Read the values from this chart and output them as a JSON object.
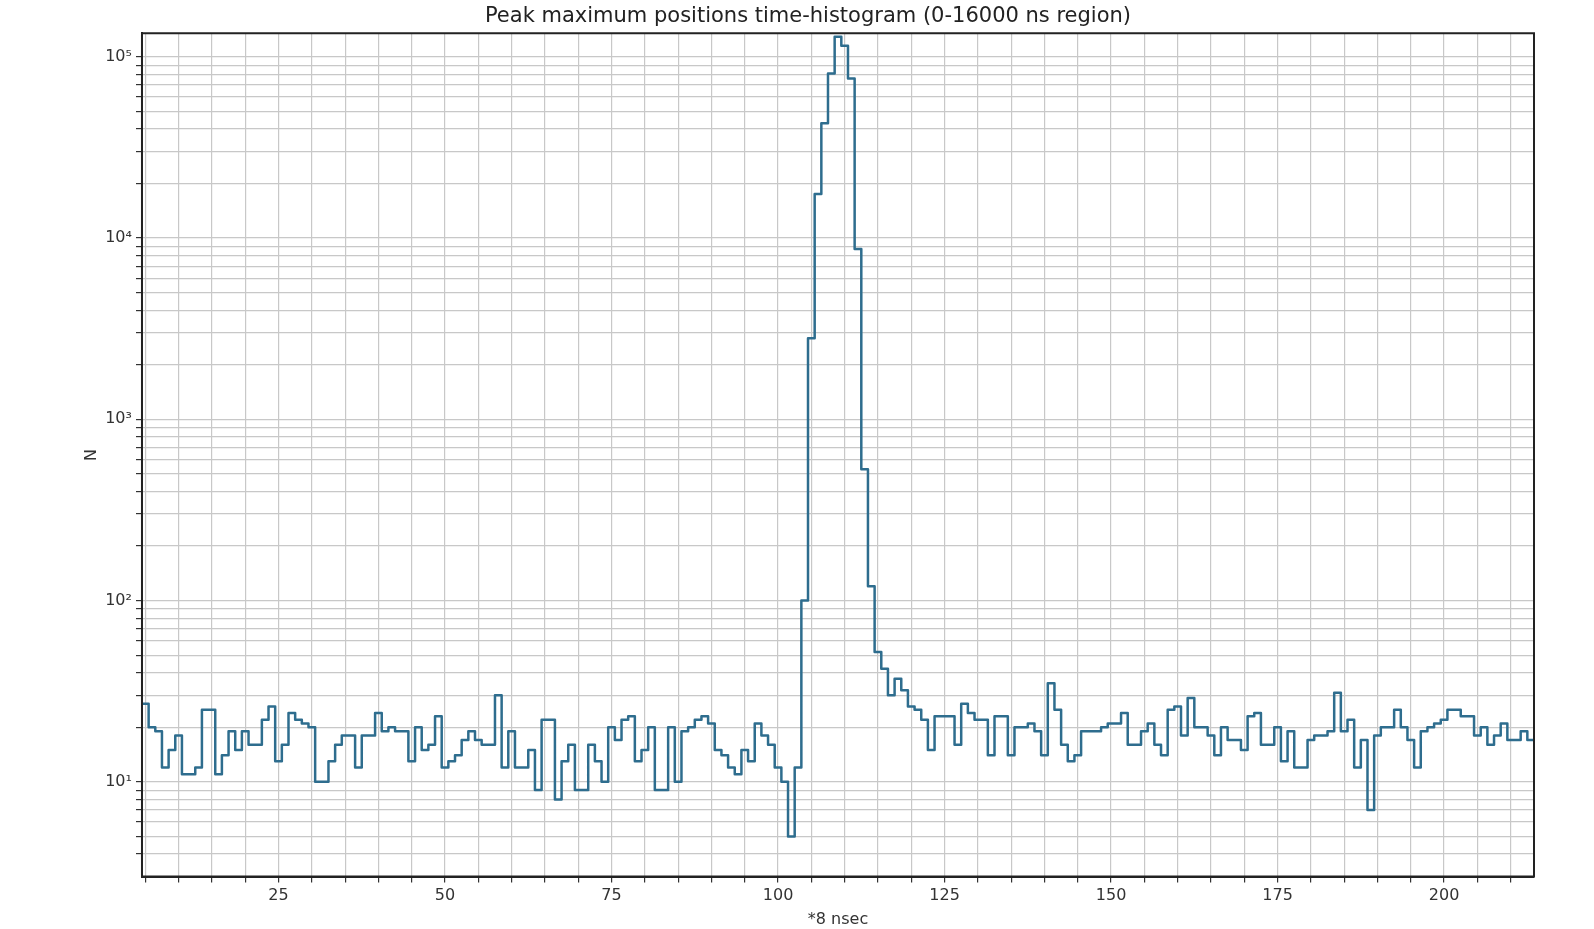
{
  "chart_data": {
    "type": "histogram",
    "title": "Peak maximum positions time-histogram (0-16000 ns region)",
    "xlabel": "*8 nsec",
    "ylabel": "N",
    "color": "#2e6d8e",
    "log": "y",
    "grid": true,
    "legend": false,
    "bins": [
      4.5,
      5.5,
      6.5,
      7.5,
      8.5,
      9.5,
      10.5,
      11.5,
      12.5,
      13.5,
      14.5,
      15.5,
      16.5,
      17.5,
      18.5,
      19.5,
      20.5,
      21.5,
      22.5,
      23.5,
      24.5,
      25.5,
      26.5,
      27.5,
      28.5,
      29.5,
      30.5,
      31.5,
      32.5,
      33.5,
      34.5,
      35.5,
      36.5,
      37.5,
      38.5,
      39.5,
      40.5,
      41.5,
      42.5,
      43.5,
      44.5,
      45.5,
      46.5,
      47.5,
      48.5,
      49.5,
      50.5,
      51.5,
      52.5,
      53.5,
      54.5,
      55.5,
      56.5,
      57.5,
      58.5,
      59.5,
      60.5,
      61.5,
      62.5,
      63.5,
      64.5,
      65.5,
      66.5,
      67.5,
      68.5,
      69.5,
      70.5,
      71.5,
      72.5,
      73.5,
      74.5,
      75.5,
      76.5,
      77.5,
      78.5,
      79.5,
      80.5,
      81.5,
      82.5,
      83.5,
      84.5,
      85.5,
      86.5,
      87.5,
      88.5,
      89.5,
      90.5,
      91.5,
      92.5,
      93.5,
      94.5,
      95.5,
      96.5,
      97.5,
      98.5,
      99.5,
      100.5,
      101.5,
      102.5,
      103.5,
      104.5,
      105.5,
      106.5,
      107.5,
      108.5,
      109.5,
      110.5,
      111.5,
      112.5,
      113.5,
      114.5,
      115.5,
      116.5,
      117.5,
      118.5,
      119.5,
      120.5,
      121.5,
      122.5,
      123.5,
      124.5,
      125.5,
      126.5,
      127.5,
      128.5,
      129.5,
      130.5,
      131.5,
      132.5,
      133.5,
      134.5,
      135.5,
      136.5,
      137.5,
      138.5,
      139.5,
      140.5,
      141.5,
      142.5,
      143.5,
      144.5,
      145.5,
      146.5,
      147.5,
      148.5,
      149.5,
      150.5,
      151.5,
      152.5,
      153.5,
      154.5,
      155.5,
      156.5,
      157.5,
      158.5,
      159.5,
      160.5,
      161.5,
      162.5,
      163.5,
      164.5,
      165.5,
      166.5,
      167.5,
      168.5,
      169.5,
      170.5,
      171.5,
      172.5,
      173.5,
      174.5,
      175.5,
      176.5,
      177.5,
      178.5,
      179.5,
      180.5,
      181.5,
      182.5,
      183.5,
      184.5,
      185.5,
      186.5,
      187.5,
      188.5,
      189.5,
      190.5,
      191.5,
      192.5,
      193.5,
      194.5,
      195.5,
      196.5,
      197.5,
      198.5,
      199.5,
      200.5,
      201.5,
      202.5,
      203.5,
      204.5,
      205.5,
      206.5,
      207.5,
      208.5,
      209.5,
      210.5,
      211.5,
      212.5,
      213.5
    ],
    "values": [
      27,
      20,
      19,
      12,
      15,
      18,
      11,
      11,
      12,
      25,
      25,
      11,
      14,
      19,
      15,
      19,
      16,
      16,
      22,
      26,
      13,
      16,
      24,
      22,
      21,
      20,
      10,
      10,
      13,
      16,
      18,
      18,
      12,
      18,
      18,
      24,
      19,
      20,
      19,
      19,
      13,
      20,
      15,
      16,
      23,
      12,
      13,
      14,
      17,
      19,
      17,
      16,
      16,
      30,
      12,
      19,
      12,
      12,
      15,
      9,
      22,
      22,
      8,
      13,
      16,
      9,
      9,
      16,
      13,
      10,
      20,
      17,
      22,
      23,
      13,
      15,
      20,
      9,
      9,
      20,
      10,
      19,
      20,
      22,
      23,
      21,
      15,
      14,
      12,
      11,
      15,
      13,
      21,
      18,
      16,
      12,
      10,
      5,
      12,
      100,
      2800,
      17500,
      43000,
      81000,
      129000,
      115000,
      76000,
      8700,
      530,
      120,
      52,
      42,
      30,
      37,
      32,
      26,
      25,
      22,
      15,
      23,
      23,
      23,
      16,
      27,
      24,
      22,
      22,
      14,
      23,
      23,
      14,
      20,
      20,
      21,
      19,
      14,
      35,
      25,
      16,
      13,
      14,
      19,
      19,
      19,
      20,
      21,
      21,
      24,
      16,
      16,
      19,
      21,
      16,
      14,
      25,
      26,
      18,
      29,
      20,
      20,
      18,
      14,
      20,
      17,
      17,
      15,
      23,
      24,
      16,
      16,
      20,
      13,
      19,
      12,
      12,
      17,
      18,
      18,
      19,
      31,
      19,
      22,
      12,
      17,
      7,
      18,
      20,
      20,
      25,
      20,
      17,
      12,
      19,
      20,
      21,
      22,
      25,
      25,
      23,
      23,
      18,
      20,
      16,
      18,
      21,
      17,
      17,
      19,
      17
    ],
    "xlim": [
      4.5,
      213.5
    ],
    "xticks": [
      {
        "value": 5,
        "label": null
      },
      {
        "value": 10,
        "label": null
      },
      {
        "value": 15,
        "label": null
      },
      {
        "value": 20,
        "label": null
      },
      25,
      {
        "value": 30,
        "label": null
      },
      {
        "value": 35,
        "label": null
      },
      {
        "value": 40,
        "label": null
      },
      {
        "value": 45,
        "label": null
      },
      50,
      {
        "value": 55,
        "label": null
      },
      {
        "value": 60,
        "label": null
      },
      {
        "value": 65,
        "label": null
      },
      {
        "value": 70,
        "label": null
      },
      75,
      {
        "value": 80,
        "label": null
      },
      {
        "value": 85,
        "label": null
      },
      {
        "value": 90,
        "label": null
      },
      {
        "value": 95,
        "label": null
      },
      100,
      {
        "value": 105,
        "label": null
      },
      {
        "value": 110,
        "label": null
      },
      {
        "value": 115,
        "label": null
      },
      {
        "value": 120,
        "label": null
      },
      125,
      {
        "value": 130,
        "label": null
      },
      {
        "value": 135,
        "label": null
      },
      {
        "value": 140,
        "label": null
      },
      {
        "value": 145,
        "label": null
      },
      150,
      {
        "value": 155,
        "label": null
      },
      {
        "value": 160,
        "label": null
      },
      {
        "value": 165,
        "label": null
      },
      {
        "value": 170,
        "label": null
      },
      175,
      {
        "value": 180,
        "label": null
      },
      {
        "value": 185,
        "label": null
      },
      {
        "value": 190,
        "label": null
      },
      {
        "value": 195,
        "label": null
      },
      200,
      {
        "value": 205,
        "label": null
      },
      {
        "value": 210,
        "label": null
      }
    ],
    "ylim": [
      3,
      135000
    ],
    "yticks": [
      {
        "value": 4,
        "label": null
      },
      {
        "value": 5,
        "label": null
      },
      {
        "value": 6,
        "label": null
      },
      {
        "value": 7,
        "label": null
      },
      {
        "value": 8,
        "label": null
      },
      {
        "value": 9,
        "label": null
      },
      {
        "value": 10,
        "label": "10¹"
      },
      {
        "value": 20,
        "label": null
      },
      {
        "value": 30,
        "label": null
      },
      {
        "value": 40,
        "label": null
      },
      {
        "value": 50,
        "label": null
      },
      {
        "value": 60,
        "label": null
      },
      {
        "value": 70,
        "label": null
      },
      {
        "value": 80,
        "label": null
      },
      {
        "value": 90,
        "label": null
      },
      {
        "value": 100,
        "label": "10²"
      },
      {
        "value": 200,
        "label": null
      },
      {
        "value": 300,
        "label": null
      },
      {
        "value": 400,
        "label": null
      },
      {
        "value": 500,
        "label": null
      },
      {
        "value": 600,
        "label": null
      },
      {
        "value": 700,
        "label": null
      },
      {
        "value": 800,
        "label": null
      },
      {
        "value": 900,
        "label": null
      },
      {
        "value": 1000,
        "label": "10³"
      },
      {
        "value": 2000,
        "label": null
      },
      {
        "value": 3000,
        "label": null
      },
      {
        "value": 4000,
        "label": null
      },
      {
        "value": 5000,
        "label": null
      },
      {
        "value": 6000,
        "label": null
      },
      {
        "value": 7000,
        "label": null
      },
      {
        "value": 8000,
        "label": null
      },
      {
        "value": 9000,
        "label": null
      },
      {
        "value": 10000,
        "label": "10⁴"
      },
      {
        "value": 20000,
        "label": null
      },
      {
        "value": 30000,
        "label": null
      },
      {
        "value": 40000,
        "label": null
      },
      {
        "value": 50000,
        "label": null
      },
      {
        "value": 60000,
        "label": null
      },
      {
        "value": 70000,
        "label": null
      },
      {
        "value": 80000,
        "label": null
      },
      {
        "value": 90000,
        "label": null
      },
      {
        "value": 100000,
        "label": "10⁵"
      }
    ]
  }
}
